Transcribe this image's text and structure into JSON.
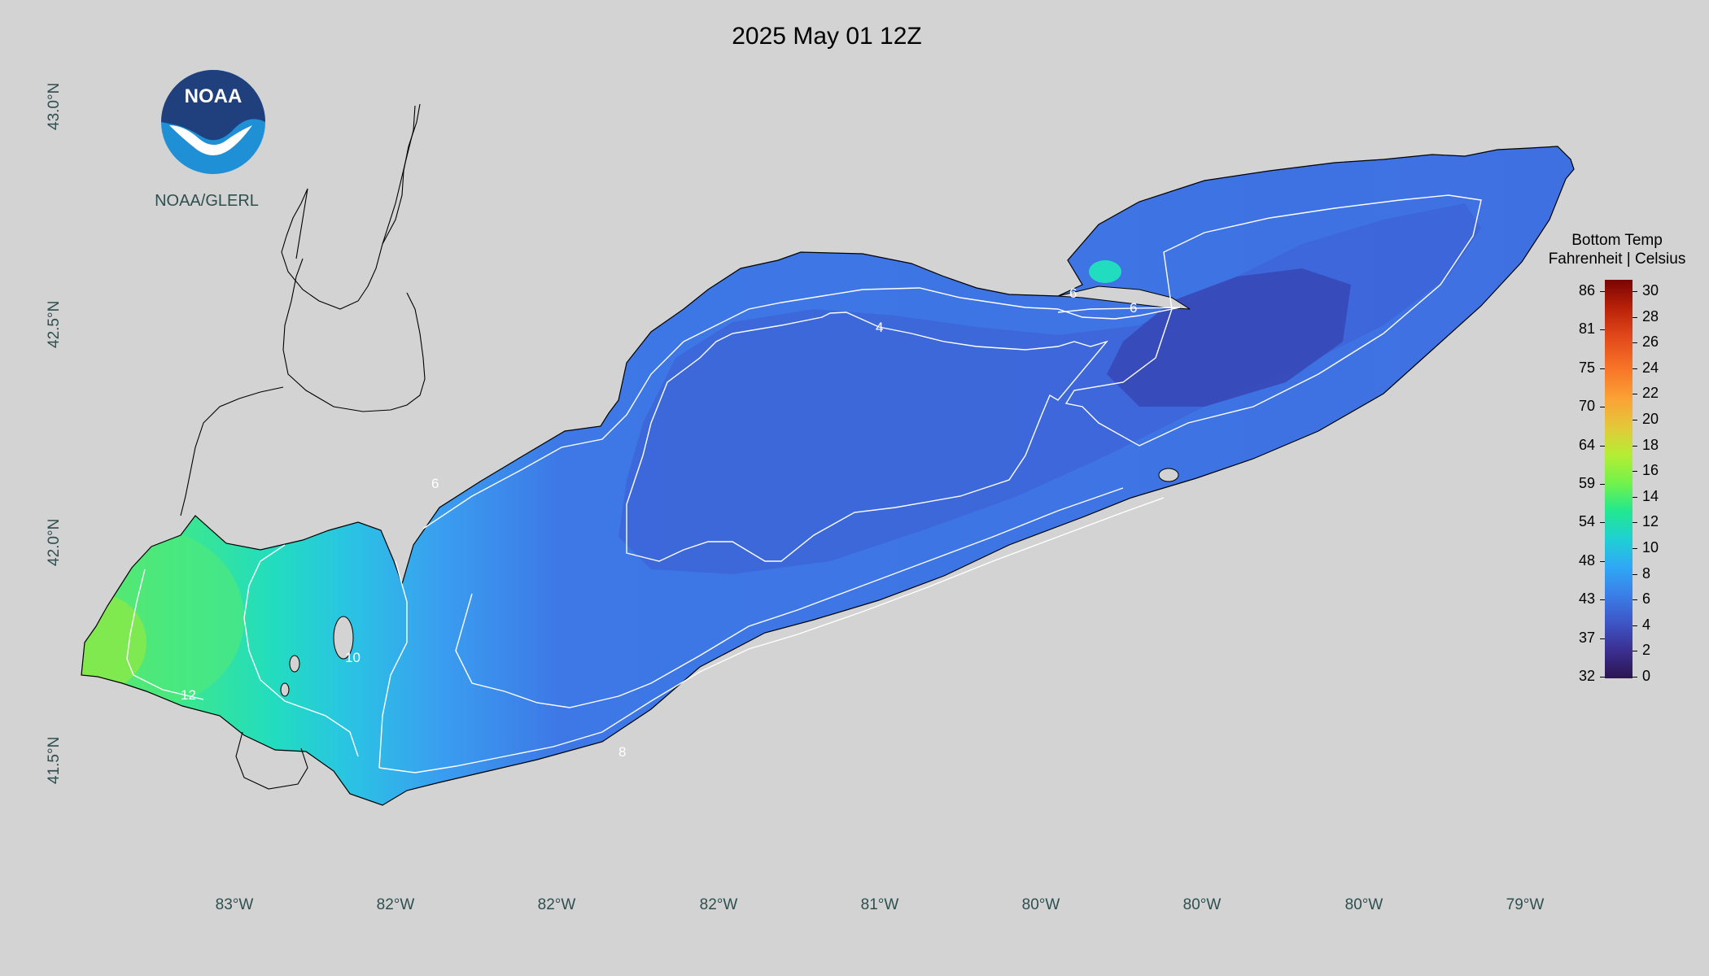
{
  "title": "2025 May 01 12Z",
  "logo": {
    "text": "NOAA",
    "label": "NOAA/GLERL"
  },
  "axes": {
    "lat_labels": [
      "43.0°N",
      "42.5°N",
      "42.0°N",
      "41.5°N"
    ],
    "lon_labels": [
      "83°W",
      "82°W",
      "82°W",
      "82°W",
      "81°W",
      "80°W",
      "80°W",
      "80°W",
      "79°W"
    ]
  },
  "legend": {
    "title_line1": "Bottom Temp",
    "title_line2": "Fahrenheit | Celsius",
    "fahrenheit": [
      "86",
      "81",
      "75",
      "70",
      "64",
      "59",
      "54",
      "48",
      "43",
      "37",
      "32"
    ],
    "celsius": [
      "30",
      "28",
      "26",
      "24",
      "22",
      "20",
      "18",
      "16",
      "14",
      "12",
      "10",
      "8",
      "6",
      "4",
      "2",
      "0"
    ],
    "colors": [
      "#2b1551",
      "#3b2f91",
      "#3e56c6",
      "#3a7fe8",
      "#2fa9f5",
      "#1fd0d3",
      "#22e88f",
      "#72f24b",
      "#b4ee34",
      "#e4c83a",
      "#fba335",
      "#f77327",
      "#e0471a",
      "#b82108",
      "#7a0403"
    ]
  },
  "contours": [
    "4",
    "6",
    "6",
    "6",
    "8",
    "10",
    "12"
  ]
}
